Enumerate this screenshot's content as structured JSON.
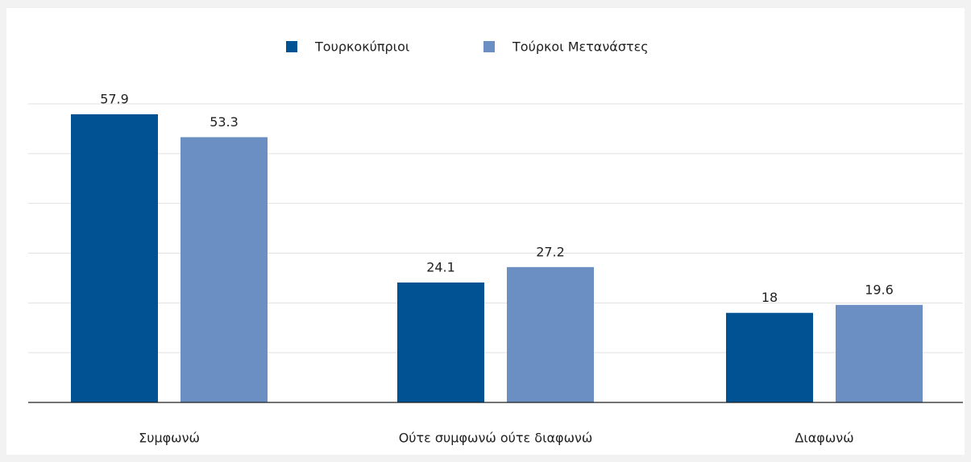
{
  "chart_data": {
    "type": "bar",
    "categories": [
      "Συμφωνώ",
      "Ούτε συμφωνώ ούτε διαφωνώ",
      "Διαφωνώ"
    ],
    "series": [
      {
        "name": "Τουρκοκύπριοι",
        "color": "#005293",
        "values": [
          57.9,
          24.1,
          18
        ]
      },
      {
        "name": "Τούρκοι Μετανάστες",
        "color": "#6b8fc3",
        "values": [
          53.3,
          27.2,
          19.6
        ]
      }
    ],
    "ylim": [
      0,
      60
    ],
    "yticks": [
      0,
      10,
      20,
      30,
      40,
      50,
      60
    ],
    "grid": true,
    "legend": "top"
  }
}
